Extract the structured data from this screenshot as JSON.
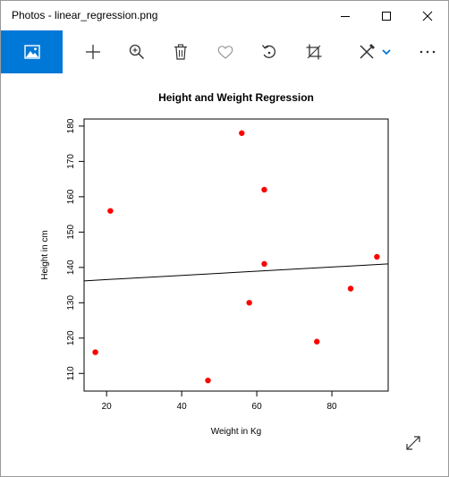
{
  "window": {
    "title": "Photos - linear_regression.png"
  },
  "toolbar": {
    "buttons": [
      {
        "name": "home",
        "icon": "picture-icon",
        "active": true
      },
      {
        "name": "add",
        "icon": "plus-icon"
      },
      {
        "name": "zoom",
        "icon": "zoom-in-icon"
      },
      {
        "name": "delete",
        "icon": "trash-icon"
      },
      {
        "name": "favorite",
        "icon": "heart-icon"
      },
      {
        "name": "rotate",
        "icon": "rotate-icon"
      },
      {
        "name": "crop",
        "icon": "crop-icon"
      },
      {
        "name": "edit",
        "icon": "edit-draw-icon"
      },
      {
        "name": "more",
        "icon": "more-icon"
      }
    ],
    "accent": "#0078d7"
  },
  "chart_data": {
    "type": "scatter",
    "title": "Height and Weight Regression",
    "xlabel": "Weight in Kg",
    "ylabel": "Height in cm",
    "xlim": [
      14,
      95
    ],
    "ylim": [
      105,
      182
    ],
    "xticks": [
      20,
      40,
      60,
      80
    ],
    "yticks": [
      110,
      120,
      130,
      140,
      150,
      160,
      170,
      180
    ],
    "grid": false,
    "point_color": "#ff0000",
    "points": [
      {
        "x": 17,
        "y": 116
      },
      {
        "x": 21,
        "y": 156
      },
      {
        "x": 47,
        "y": 108
      },
      {
        "x": 56,
        "y": 178
      },
      {
        "x": 58,
        "y": 130
      },
      {
        "x": 62,
        "y": 162
      },
      {
        "x": 62,
        "y": 141
      },
      {
        "x": 76,
        "y": 119
      },
      {
        "x": 85,
        "y": 134
      },
      {
        "x": 92,
        "y": 143
      }
    ],
    "regression_line": {
      "x": [
        14,
        95
      ],
      "y": [
        136.2,
        141.0
      ]
    }
  }
}
